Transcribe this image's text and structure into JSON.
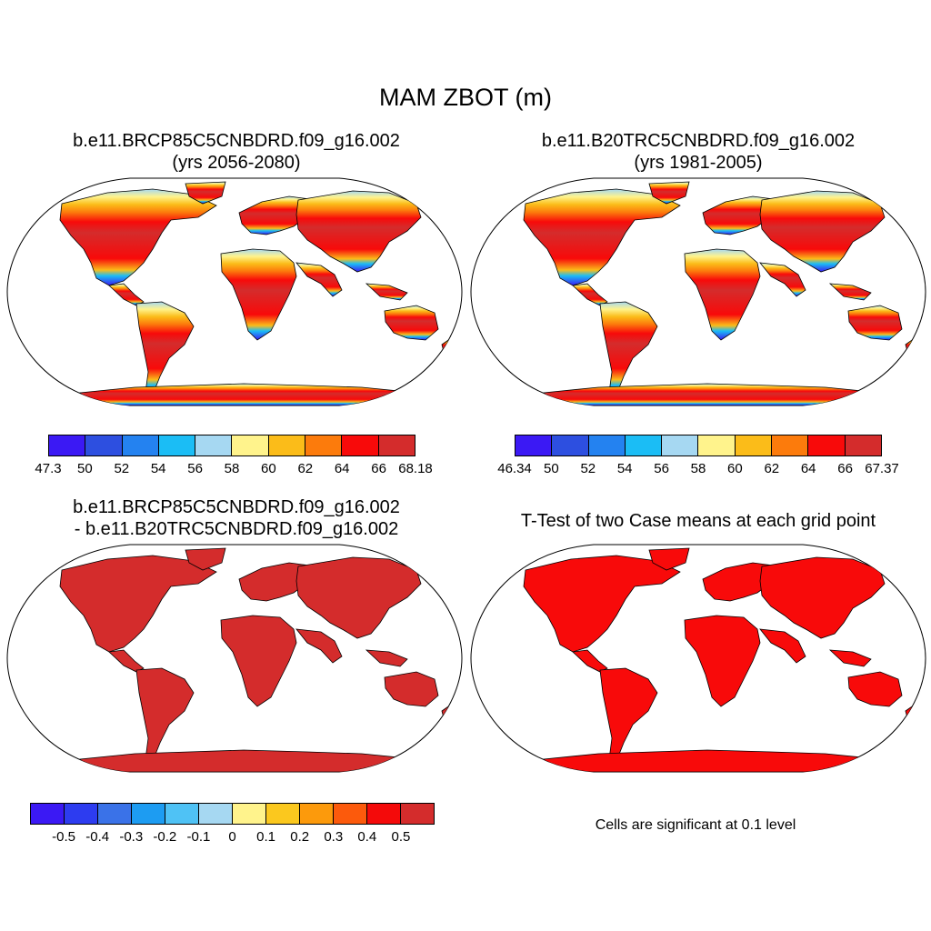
{
  "title": "MAM ZBOT (m)",
  "panels": [
    {
      "title_line1": "b.e11.BRCP85C5CNBDRD.f09_g16.002",
      "title_line2": "(yrs 2056-2080)",
      "colorbar": {
        "colors": [
          "#3b19f4",
          "#2d4fe0",
          "#2482f0",
          "#1bbdf5",
          "#a6d8f2",
          "#fff38c",
          "#fbbc19",
          "#fc7b0c",
          "#f80a0a",
          "#d42c2c"
        ],
        "labels": [
          "47.3",
          "50",
          "52",
          "54",
          "56",
          "58",
          "60",
          "62",
          "64",
          "66",
          "68.18"
        ]
      }
    },
    {
      "title_line1": "b.e11.B20TRC5CNBDRD.f09_g16.002",
      "title_line2": "(yrs 1981-2005)",
      "colorbar": {
        "colors": [
          "#3b19f4",
          "#2d4fe0",
          "#2482f0",
          "#1bbdf5",
          "#a6d8f2",
          "#fff38c",
          "#fbbc19",
          "#fc7b0c",
          "#f80a0a",
          "#d42c2c"
        ],
        "labels": [
          "46.34",
          "50",
          "52",
          "54",
          "56",
          "58",
          "60",
          "62",
          "64",
          "66",
          "67.37"
        ]
      }
    },
    {
      "title_line1": "b.e11.BRCP85C5CNBDRD.f09_g16.002",
      "title_line2": "- b.e11.B20TRC5CNBDRD.f09_g16.002",
      "colorbar": {
        "colors": [
          "#3b19f4",
          "#2d3cf0",
          "#3a72e8",
          "#1d9cf2",
          "#4fc2f5",
          "#a6d8f2",
          "#fff38c",
          "#fbc81e",
          "#fc9a0c",
          "#fc5a0c",
          "#f40a0a",
          "#d42c2c"
        ],
        "labels": [
          "-0.5",
          "-0.4",
          "-0.3",
          "-0.2",
          "-0.1",
          "0",
          "0.1",
          "0.2",
          "0.3",
          "0.4",
          "0.5"
        ]
      }
    },
    {
      "title_line1": "T-Test of two Case means at each grid point",
      "note": "Cells are significant at 0.1 level"
    }
  ],
  "colors": {
    "land_red": "#d42c2c",
    "land_bright_red": "#f80a0a",
    "ocean": "#ffffff"
  }
}
